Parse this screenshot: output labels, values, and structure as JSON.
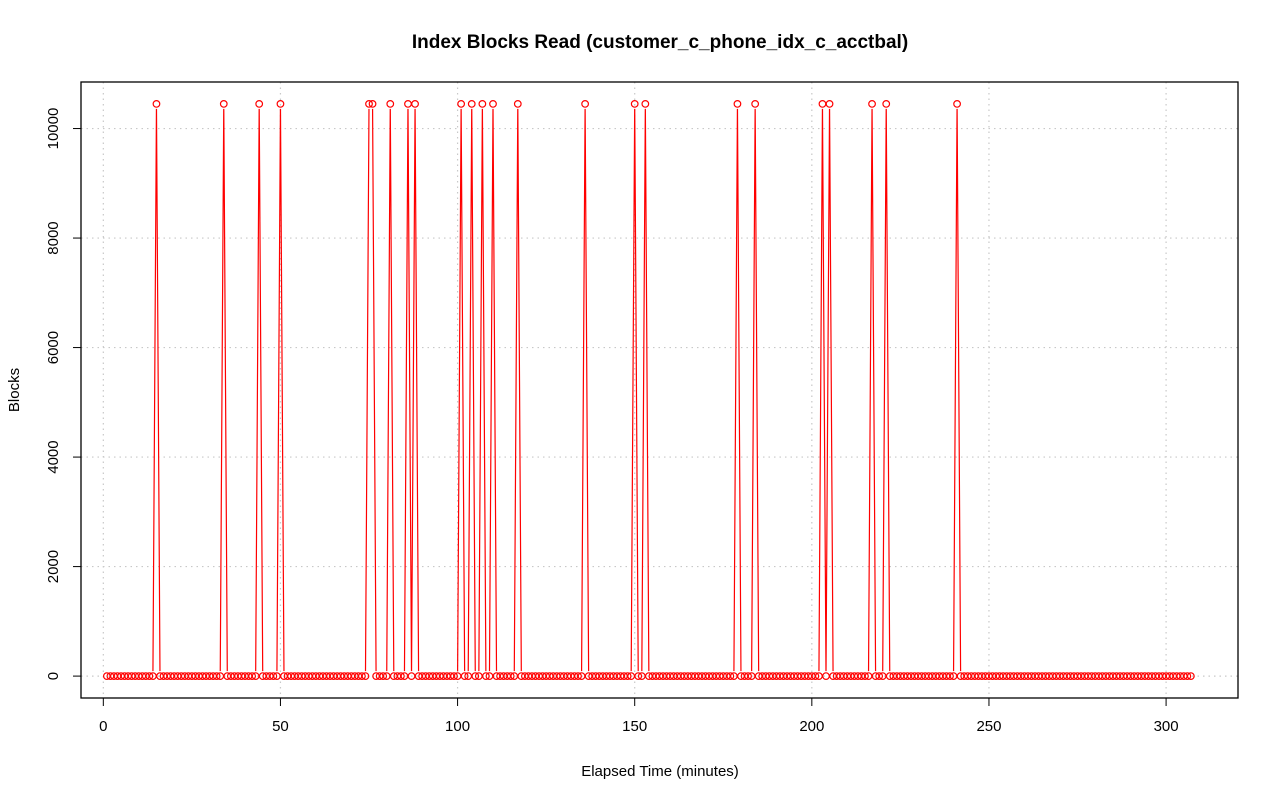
{
  "chart_data": {
    "type": "line",
    "title": "Index Blocks Read (customer_c_phone_idx_c_acctbal)",
    "xlabel": "Elapsed Time (minutes)",
    "ylabel": "Blocks",
    "xlim": [
      -6.3,
      320.3
    ],
    "ylim": [
      -400,
      10850
    ],
    "x_ticks": [
      0,
      50,
      100,
      150,
      200,
      250,
      300
    ],
    "y_ticks": [
      0,
      2000,
      4000,
      6000,
      8000,
      10000
    ],
    "x_tick_labels": [
      "0",
      "50",
      "100",
      "150",
      "200",
      "250",
      "300"
    ],
    "y_tick_labels": [
      "0",
      "2000",
      "4000",
      "6000",
      "8000",
      "10000"
    ],
    "grid": true,
    "series": [
      {
        "color": "#ff0000",
        "x_start": 1,
        "x_end": 307,
        "baseline": 0,
        "spike_value": 10450,
        "spike_x": [
          15,
          34,
          44,
          50,
          75,
          76,
          81,
          86,
          88,
          101,
          104,
          107,
          110,
          117,
          136,
          150,
          153,
          179,
          184,
          203,
          205,
          217,
          221,
          241
        ]
      }
    ]
  }
}
